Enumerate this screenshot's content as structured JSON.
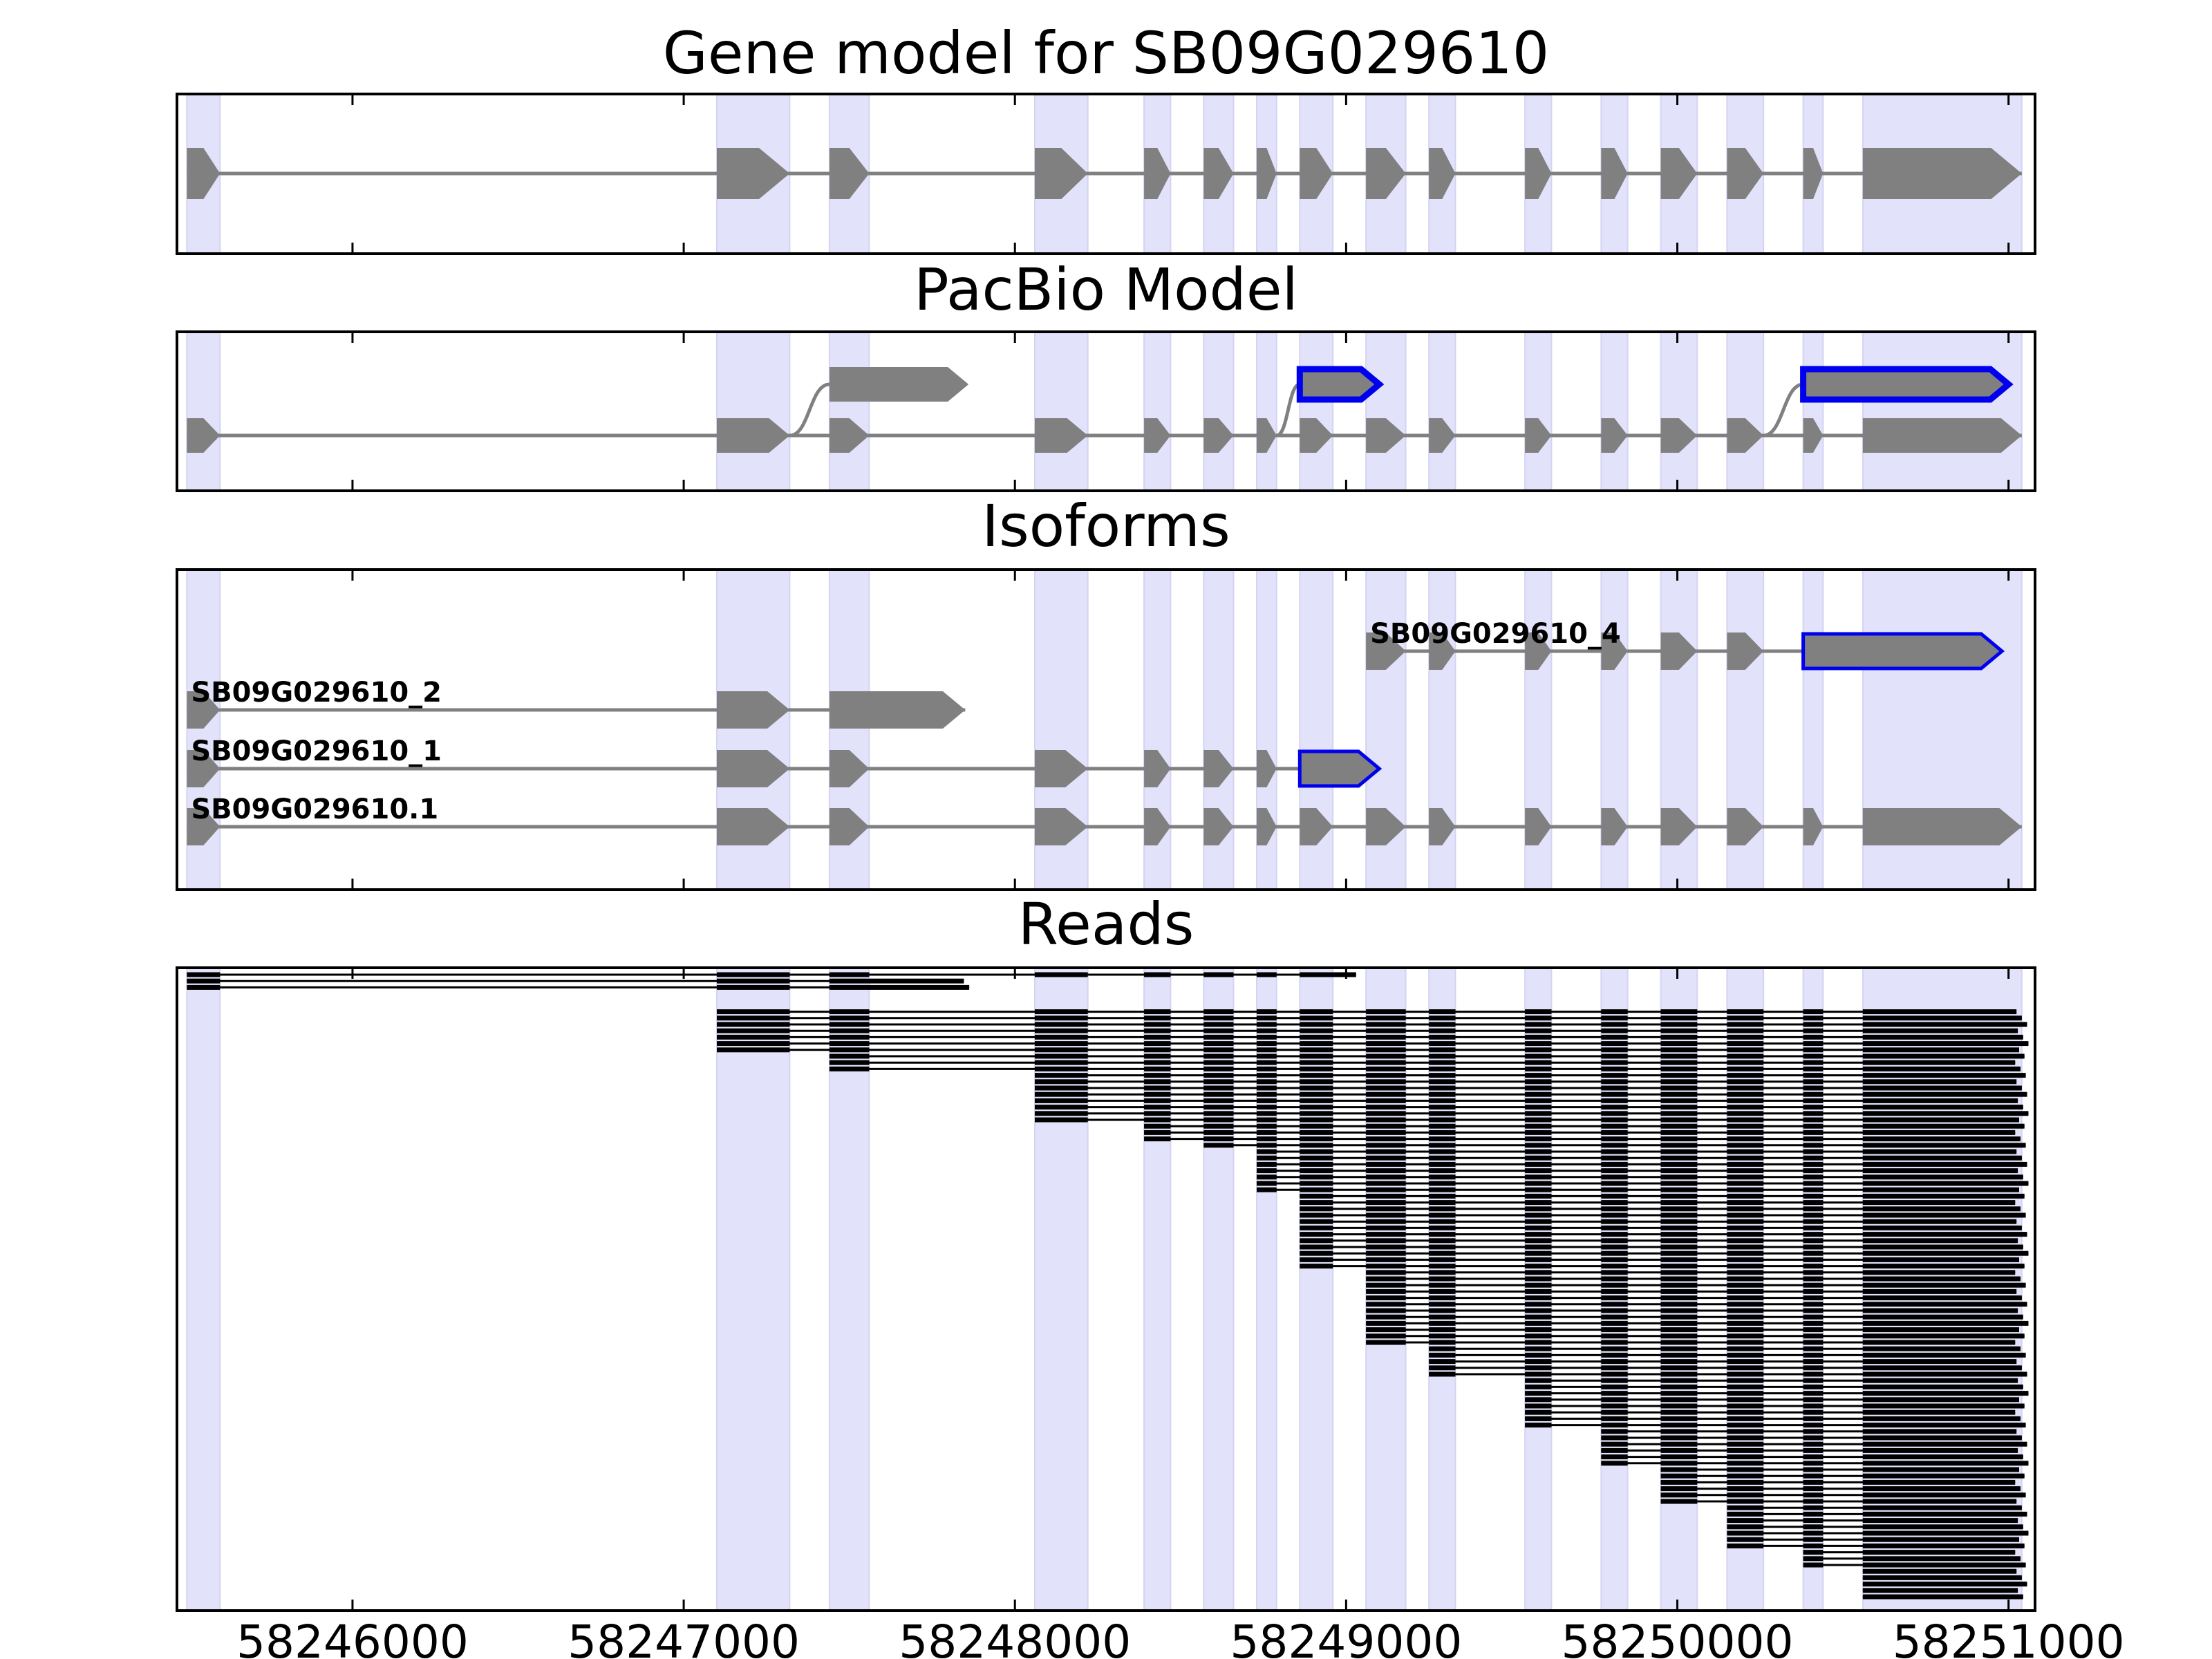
{
  "figure": {
    "panels": [
      {
        "id": "gene",
        "title": "Gene model for SB09G029610"
      },
      {
        "id": "pacbio",
        "title": "PacBio Model"
      },
      {
        "id": "isoforms",
        "title": "Isoforms"
      },
      {
        "id": "reads",
        "title": "Reads"
      }
    ],
    "x_axis": {
      "range": [
        58245470,
        58251080
      ],
      "ticks": [
        58246000,
        58247000,
        58248000,
        58249000,
        58250000,
        58251000
      ],
      "tick_labels": [
        "58246000",
        "58247000",
        "58248000",
        "58249000",
        "58250000",
        "58251000"
      ]
    },
    "colors": {
      "exon_fill": "#808080",
      "intron_line": "#808080",
      "highlight_outline": "#0000ee",
      "shade": "#e2e2fb",
      "read": "#000000"
    }
  },
  "exons": [
    [
      58245500,
      58245600
    ],
    [
      58247100,
      58247320
    ],
    [
      58247440,
      58247560
    ],
    [
      58248060,
      58248220
    ],
    [
      58248390,
      58248470
    ],
    [
      58248570,
      58248660
    ],
    [
      58248730,
      58248790
    ],
    [
      58248860,
      58248960
    ],
    [
      58249060,
      58249180
    ],
    [
      58249250,
      58249330
    ],
    [
      58249540,
      58249620
    ],
    [
      58249770,
      58249850
    ],
    [
      58249950,
      58250060
    ],
    [
      58250150,
      58250260
    ],
    [
      58250380,
      58250440
    ],
    [
      58250560,
      58251040
    ]
  ],
  "gene_model": {
    "exon_indices": [
      0,
      1,
      2,
      3,
      4,
      5,
      6,
      7,
      8,
      9,
      10,
      11,
      12,
      13,
      14,
      15
    ]
  },
  "pacbio_model": {
    "main_track": [
      0,
      1,
      2,
      3,
      4,
      5,
      6,
      7,
      8,
      9,
      10,
      11,
      12,
      13,
      14,
      15
    ],
    "alternatives": [
      {
        "from_exon": 1,
        "start": 58247440,
        "end": 58247860,
        "highlight": false
      },
      {
        "from_exon": 6,
        "start": 58248860,
        "end": 58249100,
        "highlight": true
      },
      {
        "from_exon": 13,
        "start": 58250380,
        "end": 58251000,
        "highlight": true
      }
    ]
  },
  "isoforms": [
    {
      "label": "SB09G029610_4",
      "exons": [
        [
          58249060,
          58249180
        ],
        [
          58249250,
          58249330
        ],
        [
          58249540,
          58249620
        ],
        [
          58249770,
          58249850
        ],
        [
          58249950,
          58250060
        ],
        [
          58250150,
          58250260
        ]
      ],
      "highlight_exon": [
        58250380,
        58250980
      ]
    },
    {
      "label": "SB09G029610_2",
      "exons": [
        [
          58245500,
          58245600
        ],
        [
          58247100,
          58247320
        ],
        [
          58247440,
          58247850
        ]
      ],
      "highlight_exon": null
    },
    {
      "label": "SB09G029610_1",
      "exons": [
        [
          58245500,
          58245600
        ],
        [
          58247100,
          58247320
        ],
        [
          58247440,
          58247560
        ],
        [
          58248060,
          58248220
        ],
        [
          58248390,
          58248470
        ],
        [
          58248570,
          58248660
        ],
        [
          58248730,
          58248790
        ]
      ],
      "highlight_exon": [
        58248860,
        58249100
      ]
    },
    {
      "label": "SB09G029610.1",
      "exons": [
        [
          58245500,
          58245600
        ],
        [
          58247100,
          58247320
        ],
        [
          58247440,
          58247560
        ],
        [
          58248060,
          58248220
        ],
        [
          58248390,
          58248470
        ],
        [
          58248570,
          58248660
        ],
        [
          58248730,
          58248790
        ],
        [
          58248860,
          58248960
        ],
        [
          58249060,
          58249180
        ],
        [
          58249250,
          58249330
        ],
        [
          58249540,
          58249620
        ],
        [
          58249770,
          58249850
        ],
        [
          58249950,
          58250060
        ],
        [
          58250150,
          58250260
        ],
        [
          58250380,
          58250440
        ],
        [
          58250560,
          58251040
        ]
      ],
      "highlight_exon": null
    }
  ],
  "reads": {
    "start_exons": [
      0,
      0,
      0,
      1,
      1,
      1,
      1,
      1,
      1,
      1,
      2,
      2,
      2,
      3,
      3,
      3,
      3,
      3,
      3,
      3,
      3,
      4,
      4,
      4,
      5,
      6,
      6,
      6,
      6,
      6,
      6,
      6,
      7,
      7,
      7,
      7,
      7,
      7,
      7,
      7,
      7,
      7,
      7,
      7,
      8,
      8,
      8,
      8,
      8,
      8,
      8,
      8,
      8,
      8,
      8,
      8,
      9,
      9,
      9,
      9,
      9,
      10,
      10,
      10,
      10,
      10,
      10,
      10,
      10,
      11,
      11,
      11,
      11,
      11,
      11,
      12,
      12,
      12,
      12,
      12,
      12,
      13,
      13,
      13,
      13,
      13,
      13,
      13,
      14,
      14,
      14,
      15,
      15,
      15,
      15,
      15
    ]
  }
}
